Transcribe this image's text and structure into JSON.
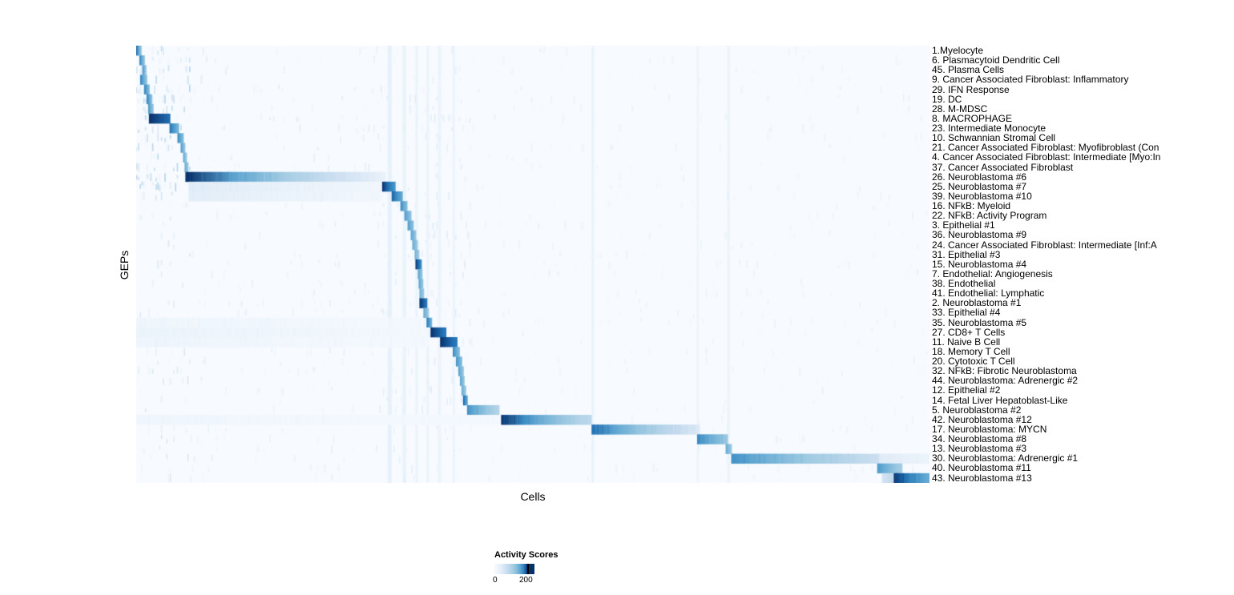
{
  "figure": {
    "background": "#ffffff"
  },
  "chart_data": {
    "type": "heatmap",
    "title": "",
    "xlabel": "Cells",
    "ylabel": "GEPs",
    "x_ticks": [],
    "value_range": [
      0,
      200
    ],
    "colorbar": {
      "label": "Activity Scores",
      "ticks": [
        0,
        200
      ],
      "tick_labels": [
        "0",
        "200"
      ],
      "stops": [
        [
          0,
          "#f7fbff"
        ],
        [
          40,
          "#e3eef8"
        ],
        [
          80,
          "#c6dbef"
        ],
        [
          120,
          "#9ecae1"
        ],
        [
          150,
          "#6baed6"
        ],
        [
          170,
          "#4292c6"
        ],
        [
          185,
          "#2171b5"
        ],
        [
          200,
          "#08306b"
        ]
      ]
    },
    "rows": [
      {
        "label": "1.Myelocyte",
        "blocks": [
          {
            "x0": 0.0,
            "x1": 0.007,
            "v0": 190,
            "v1": 110
          }
        ]
      },
      {
        "label": "6. Plasmacytoid Dendritic Cell",
        "blocks": [
          {
            "x0": 0.004,
            "x1": 0.011,
            "v0": 180,
            "v1": 120
          }
        ]
      },
      {
        "label": "45. Plasma Cells",
        "blocks": [
          {
            "x0": 0.008,
            "x1": 0.013,
            "v0": 170,
            "v1": 110
          }
        ]
      },
      {
        "label": "9. Cancer Associated Fibroblast: Inflammatory",
        "blocks": [
          {
            "x0": 0.005,
            "x1": 0.014,
            "v0": 180,
            "v1": 120
          }
        ]
      },
      {
        "label": "29. IFN Response",
        "blocks": [
          {
            "x0": 0.01,
            "x1": 0.017,
            "v0": 180,
            "v1": 130
          }
        ]
      },
      {
        "label": "19. DC",
        "blocks": [
          {
            "x0": 0.013,
            "x1": 0.02,
            "v0": 180,
            "v1": 130
          }
        ]
      },
      {
        "label": "28. M-MDSC",
        "blocks": [
          {
            "x0": 0.015,
            "x1": 0.022,
            "v0": 170,
            "v1": 120
          }
        ]
      },
      {
        "label": "8. MACROPHAGE",
        "blocks": [
          {
            "x0": 0.016,
            "x1": 0.043,
            "v0": 200,
            "v1": 185
          }
        ]
      },
      {
        "label": "23. Intermediate Monocyte",
        "blocks": [
          {
            "x0": 0.042,
            "x1": 0.054,
            "v0": 185,
            "v1": 140
          }
        ]
      },
      {
        "label": "10. Schwannian Stromal Cell",
        "blocks": [
          {
            "x0": 0.052,
            "x1": 0.06,
            "v0": 175,
            "v1": 130
          }
        ]
      },
      {
        "label": "21. Cancer Associated Fibroblast: Myofibroblast (Con",
        "blocks": [
          {
            "x0": 0.056,
            "x1": 0.062,
            "v0": 165,
            "v1": 120
          }
        ]
      },
      {
        "label": "4. Cancer Associated Fibroblast: Intermediate [Myo:In",
        "blocks": [
          {
            "x0": 0.059,
            "x1": 0.064,
            "v0": 155,
            "v1": 115
          }
        ]
      },
      {
        "label": "37. Cancer Associated Fibroblast",
        "blocks": [
          {
            "x0": 0.061,
            "x1": 0.066,
            "v0": 155,
            "v1": 115
          }
        ]
      },
      {
        "label": "26. Neuroblastoma #6",
        "blocks": [
          {
            "x0": 0.062,
            "x1": 0.315,
            "v0": 200,
            "v1": 25
          }
        ]
      },
      {
        "label": "25. Neuroblastoma #7",
        "blocks": [
          {
            "x0": 0.066,
            "x1": 0.31,
            "v0": 45,
            "v1": 12
          },
          {
            "x0": 0.31,
            "x1": 0.327,
            "v0": 200,
            "v1": 165
          }
        ]
      },
      {
        "label": "39. Neuroblastoma #10",
        "blocks": [
          {
            "x0": 0.066,
            "x1": 0.31,
            "v0": 40,
            "v1": 10
          },
          {
            "x0": 0.322,
            "x1": 0.336,
            "v0": 190,
            "v1": 150
          }
        ]
      },
      {
        "label": "16. NFkB: Myeloid",
        "blocks": [
          {
            "x0": 0.333,
            "x1": 0.342,
            "v0": 175,
            "v1": 130
          }
        ]
      },
      {
        "label": "22. NFkB: Activity Program",
        "blocks": [
          {
            "x0": 0.338,
            "x1": 0.347,
            "v0": 165,
            "v1": 125
          }
        ]
      },
      {
        "label": "3. Epithelial #1",
        "blocks": [
          {
            "x0": 0.342,
            "x1": 0.35,
            "v0": 165,
            "v1": 125
          }
        ]
      },
      {
        "label": "36. Neuroblastoma #9",
        "blocks": [
          {
            "x0": 0.346,
            "x1": 0.353,
            "v0": 160,
            "v1": 120
          }
        ]
      },
      {
        "label": "24. Cancer Associated Fibroblast: Intermediate [Inf:A",
        "blocks": [
          {
            "x0": 0.348,
            "x1": 0.355,
            "v0": 155,
            "v1": 115
          }
        ]
      },
      {
        "label": "31. Epithelial #3",
        "blocks": [
          {
            "x0": 0.351,
            "x1": 0.357,
            "v0": 150,
            "v1": 110
          }
        ]
      },
      {
        "label": "15. Neuroblastoma #4",
        "blocks": [
          {
            "x0": 0.352,
            "x1": 0.36,
            "v0": 200,
            "v1": 170
          }
        ]
      },
      {
        "label": "7. Endothelial: Angiogenesis",
        "blocks": [
          {
            "x0": 0.355,
            "x1": 0.361,
            "v0": 160,
            "v1": 120
          }
        ]
      },
      {
        "label": "38. Endothelial",
        "blocks": [
          {
            "x0": 0.356,
            "x1": 0.362,
            "v0": 160,
            "v1": 120
          }
        ]
      },
      {
        "label": "41. Endothelial: Lymphatic",
        "blocks": [
          {
            "x0": 0.357,
            "x1": 0.363,
            "v0": 150,
            "v1": 115
          }
        ]
      },
      {
        "label": "2. Neuroblastoma #1",
        "blocks": [
          {
            "x0": 0.357,
            "x1": 0.367,
            "v0": 200,
            "v1": 180
          }
        ]
      },
      {
        "label": "33. Epithelial #4",
        "blocks": [
          {
            "x0": 0.362,
            "x1": 0.369,
            "v0": 155,
            "v1": 115
          }
        ]
      },
      {
        "label": "35. Neuroblastoma #5",
        "blocks": [
          {
            "x0": 0.0,
            "x1": 0.36,
            "v0": 16,
            "v1": 8
          },
          {
            "x0": 0.366,
            "x1": 0.373,
            "v0": 185,
            "v1": 140
          }
        ]
      },
      {
        "label": "27. CD8+ T Cells",
        "blocks": [
          {
            "x0": 0.0,
            "x1": 0.37,
            "v0": 22,
            "v1": 10
          },
          {
            "x0": 0.371,
            "x1": 0.391,
            "v0": 200,
            "v1": 180
          }
        ]
      },
      {
        "label": "11. Naive B Cell",
        "blocks": [
          {
            "x0": 0.0,
            "x1": 0.37,
            "v0": 18,
            "v1": 8
          },
          {
            "x0": 0.383,
            "x1": 0.405,
            "v0": 200,
            "v1": 180
          }
        ]
      },
      {
        "label": "18. Memory T Cell",
        "blocks": [
          {
            "x0": 0.399,
            "x1": 0.408,
            "v0": 175,
            "v1": 130
          }
        ]
      },
      {
        "label": "20. Cytotoxic T Cell",
        "blocks": [
          {
            "x0": 0.403,
            "x1": 0.411,
            "v0": 170,
            "v1": 130
          }
        ]
      },
      {
        "label": "32. NFkB: Fibrotic Neuroblastoma",
        "blocks": [
          {
            "x0": 0.406,
            "x1": 0.413,
            "v0": 160,
            "v1": 120
          }
        ]
      },
      {
        "label": "44. Neuroblastoma: Adrenergic #2",
        "blocks": [
          {
            "x0": 0.408,
            "x1": 0.414,
            "v0": 160,
            "v1": 120
          }
        ]
      },
      {
        "label": "12. Epithelial #2",
        "blocks": [
          {
            "x0": 0.41,
            "x1": 0.416,
            "v0": 155,
            "v1": 115
          }
        ]
      },
      {
        "label": "14. Fetal Liver Hepatoblast-Like",
        "blocks": [
          {
            "x0": 0.412,
            "x1": 0.418,
            "v0": 190,
            "v1": 150
          }
        ]
      },
      {
        "label": "5. Neuroblastoma #2",
        "blocks": [
          {
            "x0": 0.417,
            "x1": 0.458,
            "v0": 170,
            "v1": 95
          }
        ]
      },
      {
        "label": "42. Neuroblastoma #12",
        "blocks": [
          {
            "x0": 0.0,
            "x1": 0.46,
            "v0": 14,
            "v1": 6
          },
          {
            "x0": 0.46,
            "x1": 0.574,
            "v0": 200,
            "v1": 85
          }
        ]
      },
      {
        "label": "17. Neuroblastoma: MYCN",
        "blocks": [
          {
            "x0": 0.574,
            "x1": 0.71,
            "v0": 185,
            "v1": 50
          }
        ]
      },
      {
        "label": "34. Neuroblastoma #8",
        "blocks": [
          {
            "x0": 0.707,
            "x1": 0.746,
            "v0": 175,
            "v1": 120
          }
        ]
      },
      {
        "label": "13. Neuroblastoma #3",
        "blocks": [
          {
            "x0": 0.743,
            "x1": 0.751,
            "v0": 155,
            "v1": 115
          }
        ]
      },
      {
        "label": "30. Neuroblastoma: Adrenergic #1",
        "blocks": [
          {
            "x0": 0.75,
            "x1": 0.937,
            "v0": 170,
            "v1": 70
          },
          {
            "x0": 0.937,
            "x1": 1.0,
            "v0": 45,
            "v1": 20
          }
        ]
      },
      {
        "label": "40. Neuroblastoma #11",
        "blocks": [
          {
            "x0": 0.934,
            "x1": 0.966,
            "v0": 165,
            "v1": 110
          }
        ]
      },
      {
        "label": "43. Neuroblastoma #13",
        "blocks": [
          {
            "x0": 0.94,
            "x1": 0.956,
            "v0": 60,
            "v1": 90
          },
          {
            "x0": 0.955,
            "x1": 1.0,
            "v0": 200,
            "v1": 150
          }
        ]
      }
    ],
    "column_streaks": [
      {
        "x": 0.317,
        "w": 0.005,
        "v": 50
      },
      {
        "x": 0.336,
        "w": 0.004,
        "v": 45
      },
      {
        "x": 0.352,
        "w": 0.003,
        "v": 40
      },
      {
        "x": 0.366,
        "w": 0.003,
        "v": 38
      },
      {
        "x": 0.38,
        "w": 0.004,
        "v": 36
      },
      {
        "x": 0.399,
        "w": 0.003,
        "v": 36
      },
      {
        "x": 0.574,
        "w": 0.003,
        "v": 45
      },
      {
        "x": 0.707,
        "w": 0.002,
        "v": 40
      },
      {
        "x": 0.745,
        "w": 0.003,
        "v": 42
      }
    ],
    "noise_regions": [
      {
        "x0": 0.0,
        "x1": 0.068,
        "r0": 0,
        "r1": 16,
        "density": 0.28,
        "vmax": 100
      },
      {
        "x0": 0.0,
        "x1": 0.068,
        "r0": 16,
        "r1": 45,
        "density": 0.1,
        "vmax": 55
      },
      {
        "x0": 0.068,
        "x1": 0.31,
        "r0": 0,
        "r1": 13,
        "density": 0.05,
        "vmax": 40
      },
      {
        "x0": 0.068,
        "x1": 0.3,
        "r0": 16,
        "r1": 45,
        "density": 0.05,
        "vmax": 35
      },
      {
        "x0": 0.3,
        "x1": 0.42,
        "r0": 0,
        "r1": 45,
        "density": 0.1,
        "vmax": 45
      },
      {
        "x0": 0.42,
        "x1": 1.0,
        "r0": 0,
        "r1": 45,
        "density": 0.04,
        "vmax": 30
      }
    ]
  }
}
